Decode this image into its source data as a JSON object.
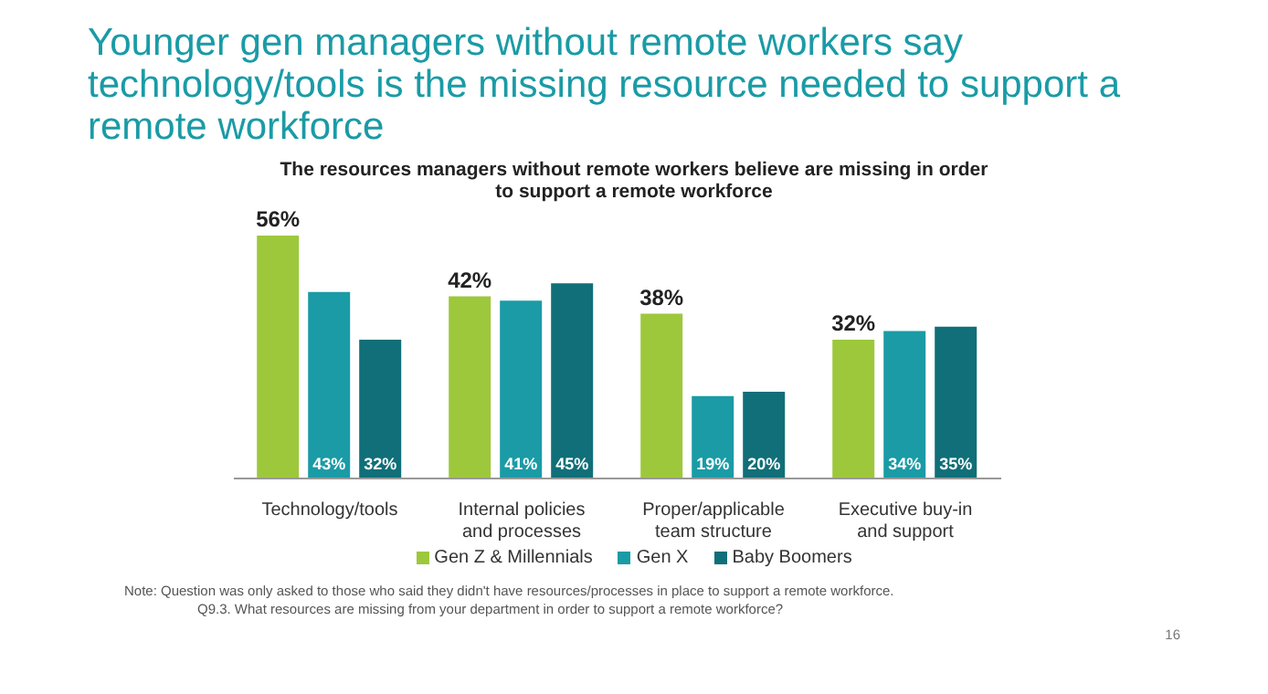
{
  "chart_data": {
    "type": "bar",
    "title": "Younger gen managers without remote workers say technology/tools is the missing resource needed to support a remote workforce",
    "subtitle": "The resources managers without remote workers believe are missing in order to support a remote workforce",
    "categories": [
      "Technology/tools",
      "Internal policies and processes",
      "Proper/applicable team structure",
      "Executive buy-in and support"
    ],
    "series": [
      {
        "name": "Gen Z & Millennials",
        "color": "#9dc83c",
        "values": [
          56,
          42,
          38,
          32
        ],
        "value_labels": [
          "56%",
          "42%",
          "38%",
          "32%"
        ]
      },
      {
        "name": "Gen X",
        "color": "#1a9ba6",
        "values": [
          43,
          41,
          19,
          34
        ],
        "value_labels": [
          "43%",
          "41%",
          "19%",
          "34%"
        ]
      },
      {
        "name": "Baby Boomers",
        "color": "#106f78",
        "values": [
          32,
          45,
          20,
          35
        ],
        "value_labels": [
          "32%",
          "45%",
          "20%",
          "35%"
        ]
      }
    ],
    "legend": "bottom",
    "grid": false,
    "annotations": [
      "Note: Question was only asked to those who said they didn't have resources/processes in place to support a remote workforce.",
      "Q9.3. What resources are missing from your department in order to support a remote workforce?",
      "16"
    ]
  }
}
